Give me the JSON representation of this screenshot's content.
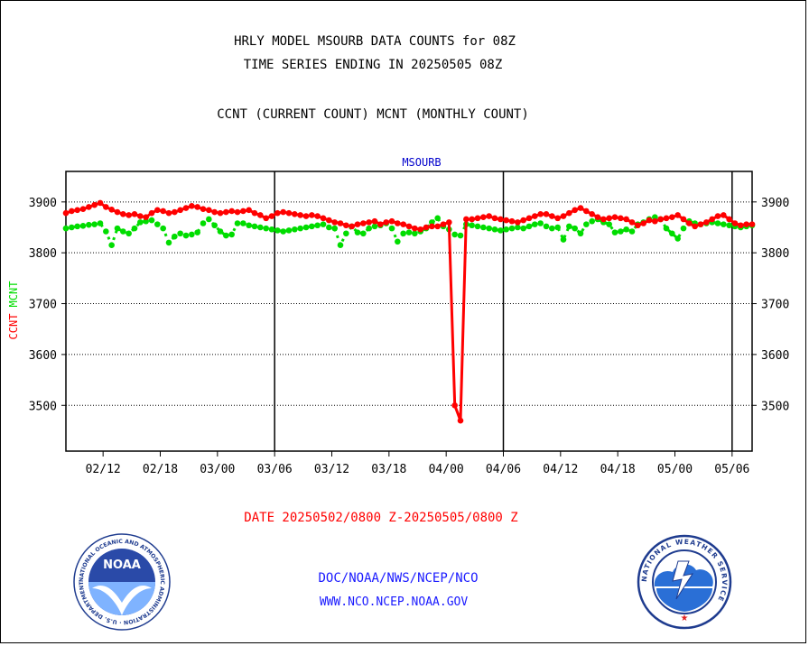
{
  "titles": {
    "line1": "HRLY MODEL MSOURB DATA COUNTS for 08Z",
    "line2": "TIME SERIES ENDING IN 20250505 08Z",
    "line3": "CCNT (CURRENT COUNT) MCNT (MONTHLY COUNT)"
  },
  "footer": {
    "date_range": "DATE 20250502/0800 Z-20250505/0800 Z",
    "org": "DOC/NOAA/NWS/NCEP/NCO",
    "url": "WWW.NCO.NCEP.NOAA.GOV"
  },
  "logos": {
    "noaa_text": "NOAA",
    "noaa_ring": "NATIONAL OCEANIC AND ATMOSPHERIC ADMINISTRATION · U.S. DEPARTMENT OF COMMERCE ·",
    "nws_ring": "NATIONAL WEATHER SERVICE"
  },
  "colors": {
    "ccnt": "#ff0000",
    "mcnt": "#00dd00",
    "title_blue": "#0000cc",
    "grid": "#000000"
  },
  "chart_data": {
    "type": "line",
    "title": "MSOURB",
    "ylabel_ccnt": "CCNT",
    "ylabel_mcnt": "MCNT",
    "ylim": [
      3410,
      3960
    ],
    "yticks": [
      3500,
      3600,
      3700,
      3800,
      3900
    ],
    "ytick_labels": [
      "3500",
      "3600",
      "3700",
      "3800",
      "3900"
    ],
    "xlim_index": [
      0,
      120
    ],
    "xticks": [
      {
        "index": 6.5,
        "label": "02/12"
      },
      {
        "index": 16.5,
        "label": "02/18"
      },
      {
        "index": 26.5,
        "label": "03/00"
      },
      {
        "index": 36.5,
        "label": "03/06"
      },
      {
        "index": 46.5,
        "label": "03/12"
      },
      {
        "index": 56.5,
        "label": "03/18"
      },
      {
        "index": 66.5,
        "label": "04/00"
      },
      {
        "index": 76.5,
        "label": "04/06"
      },
      {
        "index": 86.5,
        "label": "04/12"
      },
      {
        "index": 96.5,
        "label": "04/18"
      },
      {
        "index": 106.5,
        "label": "05/00"
      },
      {
        "index": 116.5,
        "label": "05/06"
      }
    ],
    "day_boundaries": [
      36.5,
      76.5,
      116.5
    ],
    "grid": true,
    "series": [
      {
        "name": "CCNT",
        "values": [
          3878,
          3882,
          3884,
          3886,
          3890,
          3894,
          3898,
          3890,
          3885,
          3880,
          3876,
          3874,
          3876,
          3872,
          3870,
          3878,
          3884,
          3882,
          3878,
          3880,
          3884,
          3888,
          3892,
          3890,
          3886,
          3884,
          3880,
          3878,
          3880,
          3882,
          3880,
          3882,
          3884,
          3878,
          3874,
          3868,
          3872,
          3878,
          3880,
          3878,
          3876,
          3874,
          3872,
          3874,
          3872,
          3868,
          3864,
          3860,
          3858,
          3854,
          3852,
          3856,
          3858,
          3860,
          3862,
          3856,
          3860,
          3862,
          3858,
          3856,
          3852,
          3848,
          3846,
          3850,
          3852,
          3852,
          3856,
          3860,
          3500,
          3470,
          3866,
          3866,
          3868,
          3870,
          3872,
          3868,
          3866,
          3864,
          3862,
          3860,
          3864,
          3868,
          3872,
          3876,
          3876,
          3872,
          3868,
          3872,
          3878,
          3884,
          3888,
          3882,
          3876,
          3870,
          3866,
          3868,
          3870,
          3868,
          3866,
          3860,
          3854,
          3858,
          3864,
          3862,
          3866,
          3868,
          3870,
          3874,
          3866,
          3858,
          3852,
          3856,
          3860,
          3866,
          3872,
          3874,
          3866,
          3858,
          3854,
          3856,
          3856
        ],
        "color": "#ff0000"
      },
      {
        "name": "MCNT",
        "values": [
          3848,
          3850,
          3852,
          3853,
          3855,
          3856,
          3858,
          3842,
          3815,
          3848,
          3842,
          3838,
          3848,
          3860,
          3862,
          3864,
          3856,
          3848,
          3820,
          3832,
          3838,
          3834,
          3836,
          3840,
          3858,
          3866,
          3854,
          3842,
          3834,
          3836,
          3858,
          3858,
          3854,
          3852,
          3850,
          3848,
          3846,
          3844,
          3842,
          3844,
          3846,
          3848,
          3850,
          3852,
          3854,
          3856,
          3850,
          3848,
          3815,
          3838,
          3852,
          3840,
          3838,
          3848,
          3852,
          3854,
          3858,
          3848,
          3822,
          3838,
          3840,
          3838,
          3842,
          3848,
          3860,
          3868,
          3852,
          3846,
          3836,
          3834,
          3856,
          3854,
          3852,
          3850,
          3848,
          3846,
          3844,
          3846,
          3848,
          3850,
          3848,
          3852,
          3856,
          3858,
          3852,
          3848,
          3850,
          3826,
          3852,
          3848,
          3838,
          3856,
          3862,
          3866,
          3860,
          3856,
          3840,
          3842,
          3846,
          3842,
          3856,
          3860,
          3866,
          3870,
          3866,
          3848,
          3838,
          3828,
          3848,
          3862,
          3858,
          3856,
          3858,
          3860,
          3858,
          3856,
          3854,
          3852,
          3850,
          3852,
          3854
        ],
        "color": "#00dd00"
      }
    ]
  }
}
